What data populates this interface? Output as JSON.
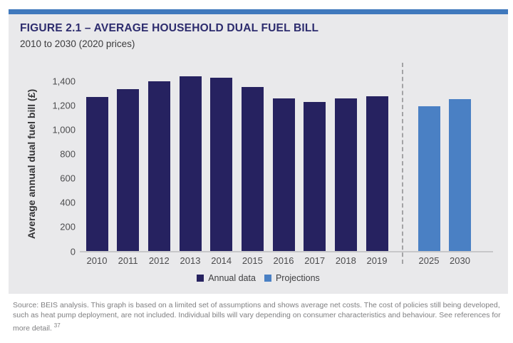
{
  "header": {
    "title": "FIGURE 2.1 – AVERAGE HOUSEHOLD DUAL FUEL BILL",
    "subtitle": "2010 to 2030 (2020 prices)"
  },
  "colors": {
    "accent_bar": "#4079bd",
    "panel_background": "#e9e9eb",
    "title_navy": "#2d2c6e",
    "annual_bar": "#262260",
    "projection_bar": "#4a80c4",
    "axis_text": "#4c4c4e",
    "footer_text": "#7f7f81"
  },
  "chart_data": {
    "type": "bar",
    "title": "FIGURE 2.1 – AVERAGE HOUSEHOLD DUAL FUEL BILL",
    "subtitle": "2010 to 2030 (2020 prices)",
    "xlabel": "",
    "ylabel": "Average annual dual fuel bill (£)",
    "ylim": [
      0,
      1400
    ],
    "ytick_interval": 200,
    "ytick_labels": [
      "0",
      "200",
      "400",
      "600",
      "800",
      "1,000",
      "1,200",
      "1,400"
    ],
    "grid": false,
    "legend_position": "bottom-center",
    "series": [
      {
        "name": "Annual data",
        "color": "#262260",
        "categories": [
          "2010",
          "2011",
          "2012",
          "2013",
          "2014",
          "2015",
          "2016",
          "2017",
          "2018",
          "2019"
        ],
        "values": [
          1270,
          1330,
          1400,
          1440,
          1425,
          1350,
          1255,
          1225,
          1255,
          1275
        ]
      },
      {
        "name": "Projections",
        "color": "#4a80c4",
        "categories": [
          "2025",
          "2030"
        ],
        "values": [
          1190,
          1250
        ]
      }
    ],
    "annotations": [
      "dashed vertical divider separates annual data (2010–2019) from projections (2025, 2030)"
    ]
  },
  "legend": {
    "items": [
      {
        "label": "Annual data",
        "color": "#262260"
      },
      {
        "label": "Projections",
        "color": "#4a80c4"
      }
    ]
  },
  "footer": {
    "source_text": "Source: BEIS analysis. This graph is based on a limited set of assumptions and shows average net costs. The cost of policies still being developed, such as heat pump deployment, are not included. Individual bills will vary depending on consumer characteristics and behaviour. See references for more detail.",
    "footnote_ref": "37"
  }
}
